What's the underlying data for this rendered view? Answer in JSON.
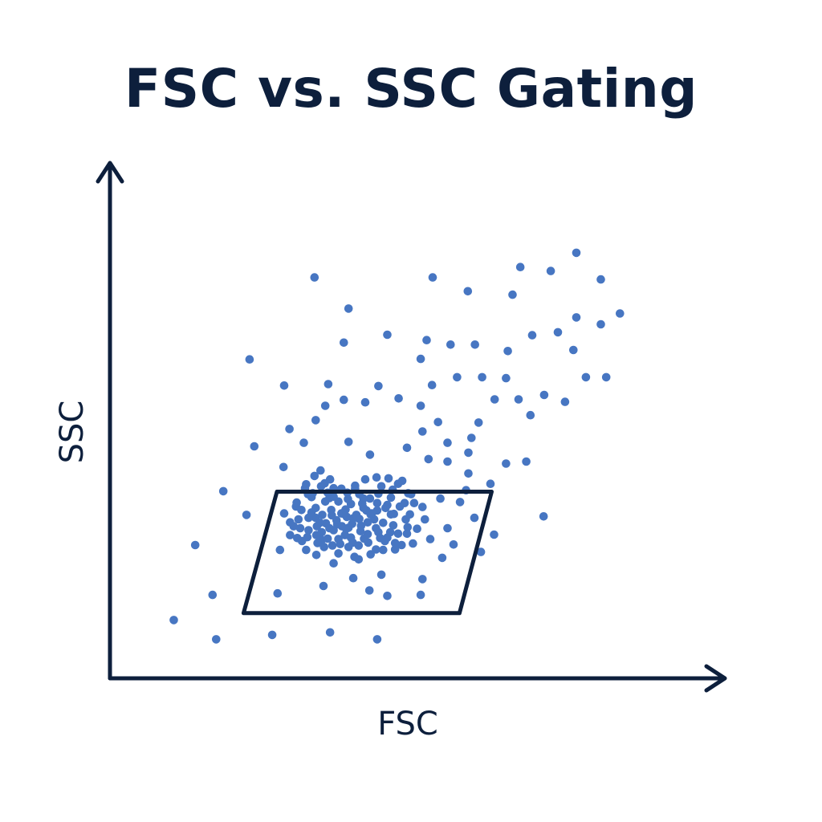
{
  "chart_data": {
    "type": "scatter",
    "title": "FSC vs. SSC Gating",
    "xlabel": "FSC",
    "ylabel": "SSC",
    "xlim": [
      0,
      100
    ],
    "ylim": [
      0,
      100
    ],
    "grid": false,
    "point_color": "#4776c2",
    "gate_color": "#0d1f3c",
    "series": [
      {
        "name": "",
        "points": [
          [
            10.7,
            11.8
          ],
          [
            17.8,
            7.9
          ],
          [
            27.2,
            8.8
          ],
          [
            36.9,
            9.3
          ],
          [
            44.8,
            7.9
          ],
          [
            17.2,
            16.9
          ],
          [
            14.3,
            27.0
          ],
          [
            19.0,
            37.9
          ],
          [
            24.2,
            47.0
          ],
          [
            29.1,
            42.8
          ],
          [
            22.9,
            33.1
          ],
          [
            28.5,
            26.0
          ],
          [
            35.5,
            28.0
          ],
          [
            37.5,
            23.3
          ],
          [
            40.8,
            20.3
          ],
          [
            35.8,
            18.7
          ],
          [
            28.1,
            17.2
          ],
          [
            43.5,
            17.8
          ],
          [
            46.5,
            16.7
          ],
          [
            52.1,
            16.9
          ],
          [
            45.5,
            21.0
          ],
          [
            52.4,
            20.1
          ],
          [
            47.8,
            26.1
          ],
          [
            55.7,
            24.4
          ],
          [
            57.6,
            27.1
          ],
          [
            62.2,
            25.6
          ],
          [
            64.4,
            29.1
          ],
          [
            61.1,
            32.5
          ],
          [
            58.7,
            35.7
          ],
          [
            56.6,
            30.4
          ],
          [
            59.7,
            38.1
          ],
          [
            63.8,
            39.4
          ],
          [
            66.4,
            43.5
          ],
          [
            69.8,
            43.9
          ],
          [
            72.7,
            32.8
          ],
          [
            60.1,
            45.7
          ],
          [
            56.6,
            43.9
          ],
          [
            53.4,
            44.4
          ],
          [
            56.6,
            47.7
          ],
          [
            60.6,
            48.7
          ],
          [
            61.8,
            51.8
          ],
          [
            55.0,
            51.9
          ],
          [
            52.4,
            50.0
          ],
          [
            49.8,
            46.7
          ],
          [
            52.1,
            55.2
          ],
          [
            48.4,
            56.7
          ],
          [
            45.0,
            59.2
          ],
          [
            54.0,
            59.4
          ],
          [
            58.2,
            61.0
          ],
          [
            62.4,
            61.0
          ],
          [
            66.4,
            60.8
          ],
          [
            68.5,
            56.5
          ],
          [
            64.5,
            56.5
          ],
          [
            70.5,
            53.3
          ],
          [
            72.8,
            57.4
          ],
          [
            76.3,
            56.0
          ],
          [
            79.8,
            61.0
          ],
          [
            83.2,
            61.0
          ],
          [
            77.7,
            66.5
          ],
          [
            75.1,
            70.1
          ],
          [
            82.3,
            71.7
          ],
          [
            85.5,
            73.9
          ],
          [
            70.8,
            69.5
          ],
          [
            66.7,
            66.3
          ],
          [
            61.2,
            67.6
          ],
          [
            57.1,
            67.6
          ],
          [
            52.1,
            64.7
          ],
          [
            53.1,
            68.5
          ],
          [
            46.5,
            69.6
          ],
          [
            39.2,
            68.0
          ],
          [
            40.0,
            74.9
          ],
          [
            34.3,
            81.2
          ],
          [
            23.4,
            64.6
          ],
          [
            29.2,
            59.3
          ],
          [
            36.6,
            59.6
          ],
          [
            42.8,
            55.9
          ],
          [
            39.2,
            56.4
          ],
          [
            36.1,
            55.2
          ],
          [
            34.5,
            52.3
          ],
          [
            30.1,
            50.5
          ],
          [
            32.5,
            47.7
          ],
          [
            40.0,
            47.9
          ],
          [
            43.6,
            45.3
          ],
          [
            35.3,
            42.1
          ],
          [
            44.7,
            40.7
          ],
          [
            49.0,
            40.0
          ],
          [
            67.5,
            77.7
          ],
          [
            60.0,
            78.4
          ],
          [
            54.1,
            81.2
          ],
          [
            68.8,
            83.3
          ],
          [
            78.2,
            73.1
          ],
          [
            73.9,
            82.5
          ],
          [
            78.2,
            86.2
          ],
          [
            82.3,
            80.8
          ],
          [
            60.1,
            41.5
          ],
          [
            50.5,
            37.3
          ],
          [
            55.4,
            36.4
          ],
          [
            47.1,
            33.2
          ],
          [
            39.2,
            33.3
          ],
          [
            33.8,
            36.7
          ],
          [
            32.7,
            38.5
          ],
          [
            31.2,
            34.8
          ],
          [
            30.2,
            31.6
          ],
          [
            34.5,
            32.5
          ],
          [
            36.5,
            37.6
          ],
          [
            41.1,
            38.4
          ],
          [
            43.0,
            34.0
          ],
          [
            47.1,
            36.6
          ],
          [
            48.3,
            29.3
          ],
          [
            46.1,
            27.8
          ],
          [
            42.6,
            28.3
          ],
          [
            41.0,
            24.6
          ],
          [
            39.6,
            30.3
          ],
          [
            36.8,
            30.4
          ],
          [
            34.6,
            29.0
          ],
          [
            31.4,
            28.4
          ],
          [
            32.9,
            26.0
          ],
          [
            34.6,
            25.0
          ],
          [
            37.3,
            26.9
          ],
          [
            40.0,
            26.6
          ],
          [
            42.1,
            30.9
          ],
          [
            44.3,
            32.2
          ],
          [
            45.8,
            31.5
          ],
          [
            43.6,
            36.4
          ],
          [
            39.9,
            36.3
          ],
          [
            37.1,
            34.1
          ],
          [
            35.2,
            31.5
          ],
          [
            33.3,
            30.0
          ],
          [
            34.5,
            34.5
          ],
          [
            38.0,
            32.0
          ],
          [
            40.8,
            32.4
          ],
          [
            42.0,
            29.8
          ],
          [
            38.3,
            28.2
          ],
          [
            36.5,
            28.3
          ],
          [
            33.3,
            32.5
          ],
          [
            31.9,
            30.4
          ],
          [
            41.7,
            26.9
          ],
          [
            44.6,
            26.1
          ],
          [
            46.5,
            28.5
          ],
          [
            47.5,
            31.0
          ],
          [
            49.9,
            30.6
          ],
          [
            48.6,
            34.8
          ],
          [
            46.5,
            35.1
          ],
          [
            45.0,
            37.4
          ],
          [
            42.5,
            36.4
          ],
          [
            40.4,
            35.3
          ],
          [
            38.3,
            35.8
          ],
          [
            36.8,
            36.5
          ],
          [
            35.4,
            38.9
          ],
          [
            33.2,
            37.3
          ],
          [
            37.5,
            30.0
          ],
          [
            39.4,
            29.0
          ],
          [
            41.3,
            33.1
          ],
          [
            43.7,
            33.2
          ],
          [
            45.0,
            29.6
          ],
          [
            40.0,
            30.5
          ],
          [
            34.8,
            27.4
          ],
          [
            32.2,
            27.8
          ],
          [
            30.2,
            29.0
          ],
          [
            29.2,
            33.4
          ],
          [
            31.3,
            35.6
          ],
          [
            32.9,
            39.3
          ],
          [
            34.3,
            41.0
          ],
          [
            36.9,
            40.3
          ],
          [
            38.8,
            38.4
          ],
          [
            41.1,
            39.0
          ],
          [
            42.8,
            40.3
          ],
          [
            45.5,
            38.9
          ],
          [
            47.4,
            38.2
          ],
          [
            49.4,
            35.5
          ],
          [
            50.3,
            33.2
          ],
          [
            51.5,
            30.3
          ],
          [
            53.7,
            28.2
          ],
          [
            50.8,
            27.3
          ],
          [
            48.9,
            27.0
          ],
          [
            47.0,
            29.6
          ],
          [
            44.6,
            30.4
          ],
          [
            43.2,
            31.6
          ],
          [
            40.6,
            31.3
          ],
          [
            38.8,
            33.4
          ],
          [
            37.2,
            33.0
          ],
          [
            35.6,
            33.1
          ],
          [
            34.7,
            30.8
          ],
          [
            33.1,
            28.6
          ],
          [
            37.5,
            38.5
          ],
          [
            39.8,
            37.6
          ],
          [
            42.5,
            34.5
          ],
          [
            44.8,
            34.0
          ],
          [
            46.2,
            34.5
          ],
          [
            47.6,
            33.3
          ],
          [
            36.1,
            35.8
          ],
          [
            38.9,
            30.8
          ],
          [
            40.4,
            28.5
          ],
          [
            43.3,
            27.5
          ],
          [
            45.8,
            26.0
          ],
          [
            33.8,
            33.6
          ],
          [
            32.1,
            34.1
          ],
          [
            31.6,
            32.2
          ],
          [
            30.8,
            30.8
          ],
          [
            35.9,
            26.6
          ],
          [
            38.3,
            25.3
          ],
          [
            41.7,
            24.1
          ],
          [
            43.7,
            25.1
          ],
          [
            34.0,
            37.5
          ],
          [
            36.0,
            39.5
          ],
          [
            46.7,
            40.5
          ],
          [
            48.3,
            39.4
          ],
          [
            50.0,
            37.5
          ],
          [
            52.4,
            34.7
          ],
          [
            52.8,
            32.2
          ],
          [
            51.0,
            35.5
          ],
          [
            49.6,
            32.2
          ],
          [
            37.5,
            36.8
          ],
          [
            39.5,
            34.2
          ],
          [
            42.3,
            35.4
          ],
          [
            44.8,
            35.5
          ],
          [
            41.8,
            37.3
          ],
          [
            39.7,
            32.7
          ],
          [
            38.1,
            31.2
          ],
          [
            36.2,
            31.4
          ],
          [
            35.5,
            29.6
          ],
          [
            38.6,
            27.2
          ],
          [
            40.7,
            27.5
          ],
          [
            43.2,
            29.2
          ],
          [
            45.3,
            28.4
          ],
          [
            47.8,
            27.4
          ],
          [
            49.8,
            29.3
          ],
          [
            41.8,
            32.3
          ],
          [
            43.9,
            33.4
          ]
        ]
      }
    ],
    "gate": {
      "shape": "parallelogram",
      "vertices": [
        [
          28.0,
          37.8
        ],
        [
          64.0,
          37.8
        ],
        [
          58.6,
          13.2
        ],
        [
          22.4,
          13.2
        ]
      ]
    }
  }
}
